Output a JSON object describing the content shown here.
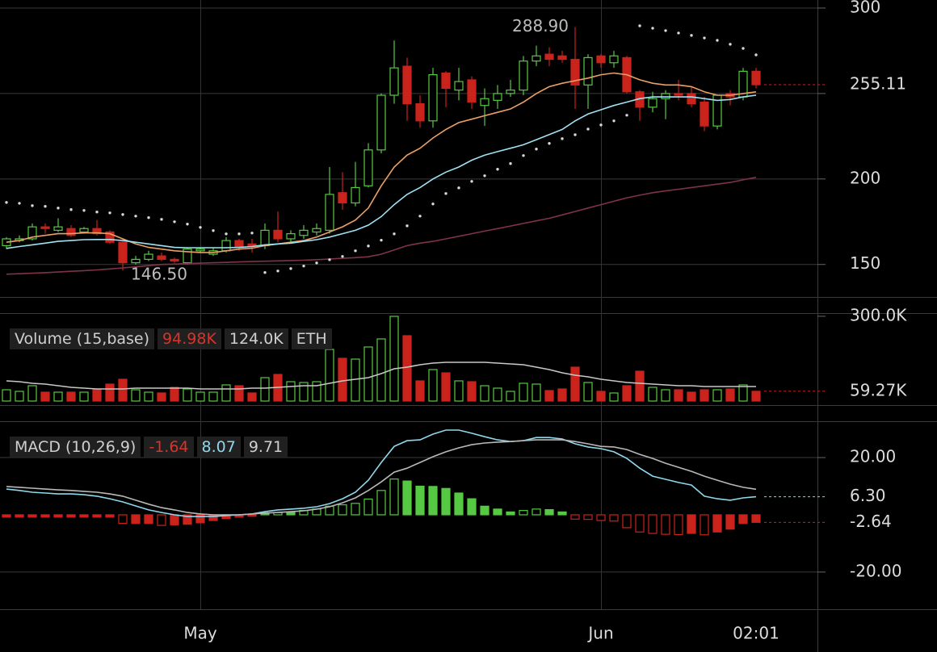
{
  "chart_data": [
    {
      "type": "candlestick",
      "categories": [
        null,
        null,
        null,
        null,
        null,
        null,
        null,
        null,
        null,
        null,
        null,
        null,
        null,
        null,
        null,
        "May",
        null,
        null,
        null,
        null,
        null,
        null,
        null,
        null,
        null,
        null,
        null,
        null,
        null,
        null,
        null,
        null,
        null,
        null,
        null,
        null,
        null,
        null,
        null,
        null,
        null,
        null,
        null,
        null,
        null,
        null,
        "Jun",
        null,
        null,
        null,
        null,
        null,
        null,
        null,
        null,
        null,
        null,
        null,
        "02:01"
      ],
      "open": [
        161,
        164,
        165,
        172,
        170,
        171,
        169,
        171,
        169,
        163,
        151,
        153,
        155,
        153,
        151,
        158,
        156,
        158,
        164,
        162,
        161,
        170,
        165,
        167,
        169,
        170,
        192,
        186,
        196,
        217,
        249,
        266,
        244,
        234,
        262,
        252,
        258,
        243,
        246,
        250,
        252,
        269,
        273,
        272,
        270,
        255,
        272,
        268,
        271,
        251,
        242,
        247,
        250,
        250,
        245,
        231,
        250,
        248,
        263
      ],
      "high": [
        166,
        167,
        174,
        174,
        177,
        173,
        172,
        176,
        170,
        164,
        155,
        158,
        157,
        154,
        160,
        160,
        160,
        166,
        165,
        165,
        174,
        181,
        170,
        173,
        174,
        207,
        204,
        210,
        221,
        250,
        281,
        271,
        249,
        265,
        263,
        265,
        260,
        253,
        255,
        258,
        272,
        278,
        277,
        275,
        288.9,
        273,
        273,
        275,
        272,
        252,
        251,
        252,
        258,
        254,
        248,
        249,
        252,
        265,
        265
      ],
      "low": [
        159,
        163,
        164,
        168,
        169,
        166,
        168,
        167,
        162,
        146.5,
        150,
        152,
        152,
        151,
        150,
        157,
        155,
        157,
        158,
        157,
        159,
        163,
        163,
        165,
        167,
        168,
        182,
        184,
        195,
        215,
        244,
        234,
        230,
        230,
        242,
        246,
        241,
        231,
        241,
        248,
        249,
        266,
        266,
        268,
        241,
        241,
        265,
        265,
        250,
        234,
        239,
        235,
        246,
        242,
        228,
        229,
        243,
        246,
        253
      ],
      "close": [
        165,
        165,
        172,
        171,
        172,
        167,
        171,
        168,
        163,
        151,
        153,
        156,
        153,
        152,
        159,
        159,
        158,
        164,
        160,
        161,
        170,
        165,
        168,
        170,
        171,
        191,
        186,
        195,
        217,
        249,
        265,
        244,
        234,
        261,
        253,
        257,
        245,
        247,
        250,
        252,
        269,
        272,
        270,
        270,
        255,
        271,
        268,
        272,
        251,
        242,
        247,
        250,
        249,
        244,
        231,
        249,
        248,
        263,
        255.11
      ],
      "up_color": "#56c943",
      "down_color": "#c9231c",
      "high_label": "288.90",
      "low_label": "146.50",
      "series": [
        {
          "color": "#eaa066",
          "values": [
            163,
            164,
            166,
            167,
            168,
            168,
            168.5,
            168.5,
            168,
            165,
            162,
            160,
            159,
            158,
            157.5,
            157,
            157,
            158,
            159,
            159.5,
            161,
            162,
            163,
            164,
            166,
            169,
            172,
            176,
            183,
            196,
            207,
            214,
            218,
            224,
            229,
            233,
            235,
            237,
            239,
            241,
            245,
            250,
            254,
            256,
            257.5,
            259,
            261,
            262,
            261,
            258,
            256,
            255,
            255,
            254,
            251,
            249,
            249,
            250,
            251
          ]
        },
        {
          "color": "#9fe2f2",
          "values": [
            159.4,
            160.5,
            161.5,
            162.5,
            163.5,
            164,
            164.5,
            164.6,
            164.6,
            164,
            163,
            162,
            161,
            160,
            159.8,
            159.8,
            159.8,
            159.8,
            160,
            160.5,
            161.5,
            162,
            162.5,
            163.5,
            164.5,
            166,
            168,
            170,
            173,
            178,
            185,
            191,
            195,
            200,
            204,
            207,
            211,
            214,
            216,
            218,
            220,
            223,
            226,
            229,
            234,
            238,
            240.5,
            243,
            245,
            247,
            248,
            248,
            248,
            248,
            247,
            246,
            246.5,
            248,
            249
          ]
        },
        {
          "color": "#7e3446",
          "values": [
            144.3,
            144.6,
            144.9,
            145.2,
            145.6,
            146,
            146.4,
            146.8,
            147.4,
            148,
            148.6,
            149.3,
            150,
            150.2,
            150.5,
            150.8,
            151,
            151.2,
            151.5,
            151.7,
            151.9,
            152.1,
            152.3,
            152.5,
            152.8,
            153.2,
            153.6,
            154,
            154.5,
            156,
            158.5,
            161,
            162.5,
            163.5,
            165,
            166.5,
            168,
            169.5,
            171,
            172.5,
            174,
            175.5,
            177,
            179,
            181,
            183,
            185,
            187,
            189,
            190.5,
            192,
            193,
            194,
            195,
            196,
            197,
            198,
            199.5,
            201
          ]
        }
      ],
      "sar": {
        "color": "#d8d8d8",
        "values": [
          186.3,
          185.8,
          184.4,
          184,
          183,
          182.1,
          181.6,
          180.7,
          180.2,
          179.2,
          178.3,
          177.4,
          176.4,
          175,
          173.6,
          171.7,
          169.8,
          167.9,
          167.9,
          168.4,
          145.3,
          146.2,
          147.6,
          149.1,
          150.9,
          152.8,
          154.7,
          158,
          160.8,
          164.2,
          167.9,
          172.6,
          178.3,
          185.4,
          191.5,
          194.8,
          198.6,
          201.9,
          205.7,
          209,
          213.7,
          217.5,
          220.8,
          223.6,
          225.9,
          229.2,
          231.6,
          234,
          237.3,
          289.6,
          288.2,
          286.8,
          285.4,
          284,
          282.5,
          281.1,
          278.8,
          276.4,
          272.6
        ]
      },
      "ylim": [
        131,
        304.7
      ],
      "yticks": [
        150,
        200,
        {
          "value": 250,
          "label": null
        },
        300
      ],
      "grid": true
    },
    {
      "type": "bar",
      "title": "Volume (15,base)",
      "readout": [
        "94.98K",
        "124.0K",
        "ETH"
      ],
      "values": [
        64.2,
        59.1,
        77.2,
        56.5,
        56.5,
        56.5,
        56.5,
        64.2,
        82.4,
        97.9,
        64.2,
        56.5,
        53.9,
        72,
        66.8,
        56.5,
        56.5,
        79.8,
        77.2,
        53.9,
        103.1,
        113.4,
        90.1,
        87.5,
        90.1,
        193.7,
        165.2,
        162.6,
        201.5,
        227.4,
        299.8,
        237.7,
        92.7,
        129,
        118.6,
        92.7,
        90.1,
        77.2,
        69.4,
        59.1,
        85,
        82.4,
        61.7,
        66.8,
        136.7,
        87.5,
        59.1,
        53.9,
        77.2,
        123.8,
        72,
        64.2,
        64.2,
        56.5,
        64.2,
        64.2,
        66.8,
        79.8,
        59.27
      ],
      "value_labels": [
        null,
        null,
        null,
        null,
        null,
        null,
        null,
        null,
        null,
        null,
        null,
        null,
        null,
        null,
        null,
        null,
        null,
        null,
        null,
        null,
        null,
        null,
        null,
        null,
        null,
        null,
        null,
        null,
        null,
        null,
        null,
        null,
        null,
        null,
        null,
        null,
        null,
        null,
        null,
        null,
        null,
        null,
        null,
        null,
        null,
        null,
        null,
        null,
        null,
        null,
        null,
        null,
        null,
        null,
        null,
        null,
        null,
        null,
        "59.27K"
      ],
      "series": [
        {
          "color": "#c8c8c8",
          "values": [
            92.7,
            90.1,
            85,
            82.4,
            77.2,
            72,
            69.4,
            66.8,
            66.8,
            66.8,
            69.4,
            69.4,
            69.4,
            69.4,
            69.4,
            66.8,
            66.8,
            66.8,
            66.8,
            69.4,
            69.4,
            72,
            74.6,
            77.2,
            77.2,
            85,
            92.7,
            97.9,
            103.1,
            116,
            131.6,
            136.7,
            144.5,
            149.7,
            152.3,
            152.3,
            152.3,
            152.3,
            149.7,
            147.1,
            144.5,
            136.7,
            129,
            118.6,
            110.8,
            105.7,
            97.9,
            92.7,
            87.5,
            85,
            82.4,
            79.8,
            77.2,
            77.2,
            74.6,
            74.6,
            74.6,
            74.6,
            74.6
          ]
        }
      ],
      "ylim": [
        28,
        305
      ],
      "yticks": [
        {
          "value": 300,
          "label": "300.0K"
        }
      ],
      "grid": false
    },
    {
      "type": "macd",
      "title": "MACD (10,26,9)",
      "readout": [
        "-1.64",
        "8.07",
        "9.71"
      ],
      "histogram": {
        "values": [
          -0.8,
          -0.8,
          -0.8,
          -0.8,
          -0.8,
          -0.8,
          -0.8,
          -0.8,
          -0.8,
          -3,
          -3,
          -3,
          -3.7,
          -3.5,
          -3.3,
          -2.8,
          -2,
          -1.3,
          -0.8,
          -0.5,
          0.5,
          0.8,
          0.8,
          1.5,
          2,
          3,
          3.5,
          4,
          5.5,
          8.5,
          12.5,
          11.8,
          10,
          9.9,
          9.2,
          7.6,
          5.6,
          3,
          2,
          1,
          1.5,
          2,
          1.8,
          1,
          -1.5,
          -1.6,
          -2,
          -2.2,
          -4.5,
          -6,
          -6.5,
          -6.8,
          -6.9,
          -6.5,
          -7,
          -6,
          -5,
          -3,
          -2.64
        ],
        "value_labels": [
          null,
          null,
          null,
          null,
          null,
          null,
          null,
          null,
          null,
          null,
          null,
          null,
          null,
          null,
          null,
          null,
          null,
          null,
          null,
          null,
          null,
          null,
          null,
          null,
          null,
          null,
          null,
          null,
          null,
          null,
          null,
          null,
          null,
          null,
          null,
          null,
          null,
          null,
          null,
          null,
          null,
          null,
          null,
          null,
          null,
          null,
          null,
          null,
          null,
          null,
          null,
          null,
          null,
          null,
          null,
          null,
          null,
          null,
          "-2.64"
        ]
      },
      "series": [
        {
          "color": "#8fd8ec",
          "values": [
            9,
            8.5,
            7.9,
            7.6,
            7.3,
            7.3,
            7,
            6.5,
            5.6,
            4.5,
            3.1,
            1.7,
            0.8,
            0,
            -0.6,
            -0.6,
            -0.6,
            -0.3,
            0,
            0.3,
            1.1,
            1.7,
            2,
            2.3,
            2.8,
            3.9,
            5.6,
            7.9,
            12.1,
            18.3,
            23.9,
            25.9,
            26.2,
            28.2,
            29.6,
            29.6,
            28.5,
            27.3,
            26.2,
            25.6,
            25.9,
            27,
            27,
            26.5,
            24.8,
            23.7,
            23.1,
            22,
            19.7,
            16.3,
            13.5,
            12.4,
            11.3,
            10.4,
            6.5,
            5.6,
            5.1,
            5.9,
            6.3
          ],
          "value_labels": [
            null,
            null,
            null,
            null,
            null,
            null,
            null,
            null,
            null,
            null,
            null,
            null,
            null,
            null,
            null,
            null,
            null,
            null,
            null,
            null,
            null,
            null,
            null,
            null,
            null,
            null,
            null,
            null,
            null,
            null,
            null,
            null,
            null,
            null,
            null,
            null,
            null,
            null,
            null,
            null,
            null,
            null,
            null,
            null,
            null,
            null,
            null,
            null,
            null,
            null,
            null,
            null,
            null,
            null,
            null,
            null,
            null,
            null,
            "6.30"
          ]
        },
        {
          "color": "#b8b8b8",
          "values": [
            9.9,
            9.6,
            9.3,
            9,
            8.7,
            8.5,
            8.2,
            7.9,
            7.3,
            6.5,
            5.1,
            3.7,
            2.5,
            1.7,
            0.8,
            0.3,
            0,
            0,
            0,
            0.3,
            0.6,
            0.8,
            1.1,
            1.4,
            2,
            2.8,
            4.2,
            5.9,
            8.5,
            11.5,
            14.9,
            16.3,
            18.3,
            20.3,
            22,
            23.4,
            24.5,
            25.1,
            25.4,
            25.6,
            25.9,
            26.2,
            26.2,
            26.2,
            25.6,
            24.8,
            23.9,
            23.7,
            22.8,
            21.1,
            19.7,
            18,
            16.6,
            15.2,
            13.5,
            12.1,
            10.7,
            9.6,
            8.94
          ]
        }
      ],
      "ylim": [
        -33,
        32.7
      ],
      "yticks": [
        {
          "value": -20,
          "label": "-20.00"
        },
        {
          "value": 20,
          "label": "20.00"
        }
      ],
      "grid": true
    }
  ]
}
